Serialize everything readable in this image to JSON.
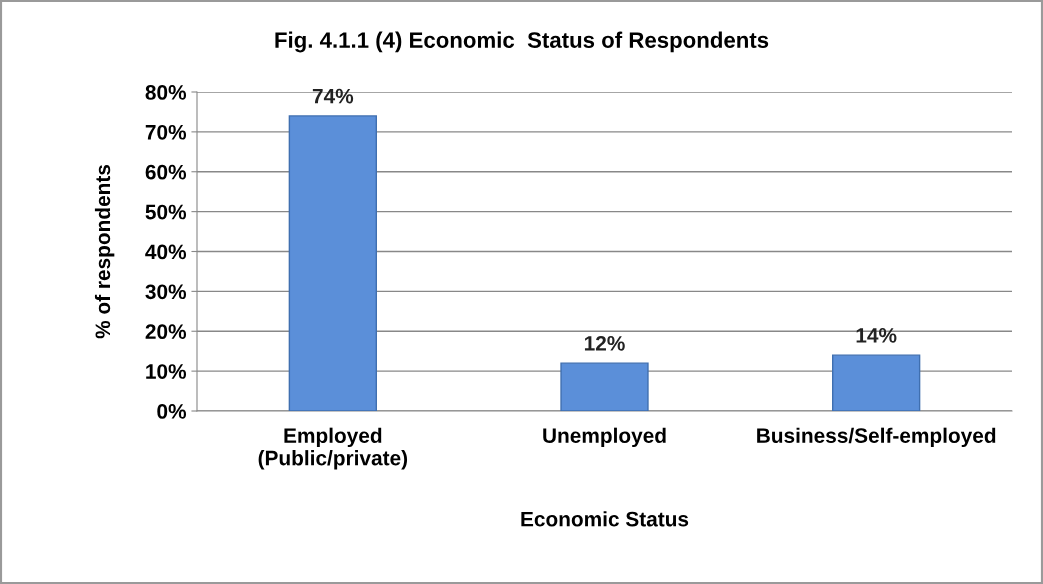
{
  "chart_data": {
    "type": "bar",
    "title": "Fig. 4.1.1 (4) Economic  Status of Respondents",
    "xlabel": "Economic Status",
    "ylabel": "% of respondents",
    "categories": [
      "Employed\n(Public/private)",
      "Unemployed",
      "Business/Self-employed"
    ],
    "values": [
      74,
      12,
      14
    ],
    "value_labels": [
      "74%",
      "12%",
      "14%"
    ],
    "color": "#5b8fd9",
    "ylim": [
      0,
      80
    ],
    "yticks": [
      {
        "value": 0,
        "label": "0%"
      },
      {
        "value": 10,
        "label": "10%"
      },
      {
        "value": 20,
        "label": "20%"
      },
      {
        "value": 30,
        "label": "30%"
      },
      {
        "value": 40,
        "label": "40%"
      },
      {
        "value": 50,
        "label": "50%"
      },
      {
        "value": 60,
        "label": "60%"
      },
      {
        "value": 70,
        "label": "70%"
      },
      {
        "value": 80,
        "label": "80%"
      }
    ],
    "grid": "y",
    "legend": false
  }
}
